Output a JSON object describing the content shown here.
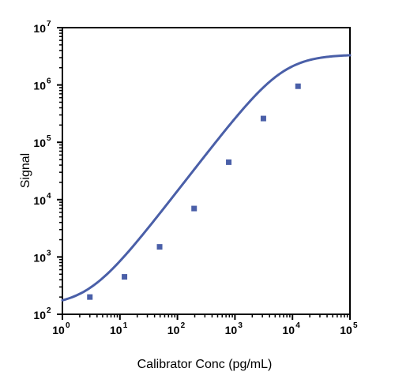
{
  "chart_data": {
    "type": "scatter",
    "xlabel": "Calibrator Conc (pg/mL)",
    "ylabel": "Signal",
    "x_scale": "log",
    "y_scale": "log",
    "xlim": [
      1,
      100000
    ],
    "ylim": [
      100,
      10000000
    ],
    "x_ticks": [
      {
        "base": "10",
        "exp": "0"
      },
      {
        "base": "10",
        "exp": "1"
      },
      {
        "base": "10",
        "exp": "2"
      },
      {
        "base": "10",
        "exp": "3"
      },
      {
        "base": "10",
        "exp": "4"
      },
      {
        "base": "10",
        "exp": "5"
      }
    ],
    "y_ticks": [
      {
        "base": "10",
        "exp": "2"
      },
      {
        "base": "10",
        "exp": "3"
      },
      {
        "base": "10",
        "exp": "4"
      },
      {
        "base": "10",
        "exp": "5"
      },
      {
        "base": "10",
        "exp": "6"
      },
      {
        "base": "10",
        "exp": "7"
      }
    ],
    "grid": false,
    "legend": false,
    "series": [
      {
        "marker": "square",
        "color": "#4a5fa8",
        "points": [
          {
            "x": 3,
            "y": 200
          },
          {
            "x": 12,
            "y": 450
          },
          {
            "x": 49,
            "y": 1500
          },
          {
            "x": 195,
            "y": 7000
          },
          {
            "x": 780,
            "y": 45000
          },
          {
            "x": 3125,
            "y": 260000
          },
          {
            "x": 12500,
            "y": 950000
          }
        ]
      }
    ],
    "fit_curve": {
      "type": "4PL",
      "color": "#4a5fa8",
      "bottom": 140,
      "top": 3400000,
      "ec50": 6800,
      "hill": 1.3
    }
  }
}
